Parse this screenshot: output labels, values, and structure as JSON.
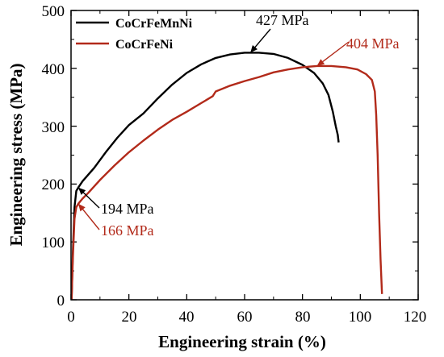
{
  "chart_data": {
    "type": "line",
    "title": "",
    "xlabel": "Engineering strain (%)",
    "ylabel": "Engineering stress (MPa)",
    "xlim": [
      0,
      120
    ],
    "ylim": [
      0,
      500
    ],
    "x_ticks": [
      0,
      20,
      40,
      60,
      80,
      100,
      120
    ],
    "y_ticks": [
      0,
      100,
      200,
      300,
      400,
      500
    ],
    "x_tick_labels": [
      "0",
      "20",
      "40",
      "60",
      "80",
      "100",
      "120"
    ],
    "y_tick_labels": [
      "0",
      "100",
      "200",
      "300",
      "400",
      "500"
    ],
    "grid": false,
    "legend_position": "top-left",
    "series": [
      {
        "name": "CoCrFeMnNi",
        "color": "#000000",
        "points": [
          [
            0.2,
            0
          ],
          [
            0.6,
            80
          ],
          [
            1.2,
            160
          ],
          [
            1.8,
            188
          ],
          [
            2.5,
            194
          ],
          [
            4,
            205
          ],
          [
            8,
            228
          ],
          [
            12,
            255
          ],
          [
            16,
            280
          ],
          [
            20,
            302
          ],
          [
            25,
            322
          ],
          [
            30,
            348
          ],
          [
            35,
            372
          ],
          [
            40,
            392
          ],
          [
            45,
            407
          ],
          [
            50,
            418
          ],
          [
            55,
            424
          ],
          [
            60,
            427
          ],
          [
            65,
            427
          ],
          [
            70,
            425
          ],
          [
            75,
            418
          ],
          [
            80,
            406
          ],
          [
            84,
            392
          ],
          [
            87,
            374
          ],
          [
            89,
            354
          ],
          [
            90.5,
            325
          ],
          [
            91.5,
            300
          ],
          [
            92.2,
            285
          ],
          [
            92.5,
            272
          ]
        ]
      },
      {
        "name": "CoCrFeNi",
        "color": "#b22a1a",
        "points": [
          [
            0.2,
            0
          ],
          [
            0.6,
            70
          ],
          [
            1.2,
            140
          ],
          [
            1.8,
            160
          ],
          [
            2.5,
            166
          ],
          [
            4,
            175
          ],
          [
            6,
            185
          ],
          [
            10,
            207
          ],
          [
            15,
            232
          ],
          [
            20,
            255
          ],
          [
            25,
            275
          ],
          [
            30,
            294
          ],
          [
            35,
            311
          ],
          [
            40,
            325
          ],
          [
            45,
            340
          ],
          [
            49,
            352
          ],
          [
            50,
            360
          ],
          [
            55,
            370
          ],
          [
            60,
            378
          ],
          [
            65,
            385
          ],
          [
            70,
            393
          ],
          [
            75,
            398
          ],
          [
            80,
            402
          ],
          [
            85,
            404
          ],
          [
            90,
            404
          ],
          [
            95,
            402
          ],
          [
            99,
            398
          ],
          [
            102,
            390
          ],
          [
            104,
            380
          ],
          [
            105,
            360
          ],
          [
            105.5,
            320
          ],
          [
            106,
            250
          ],
          [
            106.5,
            150
          ],
          [
            107,
            70
          ],
          [
            107.5,
            10
          ]
        ]
      }
    ],
    "annotations": [
      {
        "text": "427 MPa",
        "color": "#000000"
      },
      {
        "text": "404 MPa",
        "color": "#b22a1a"
      },
      {
        "text": "194 MPa",
        "color": "#000000"
      },
      {
        "text": "166 MPa",
        "color": "#b22a1a"
      }
    ]
  }
}
